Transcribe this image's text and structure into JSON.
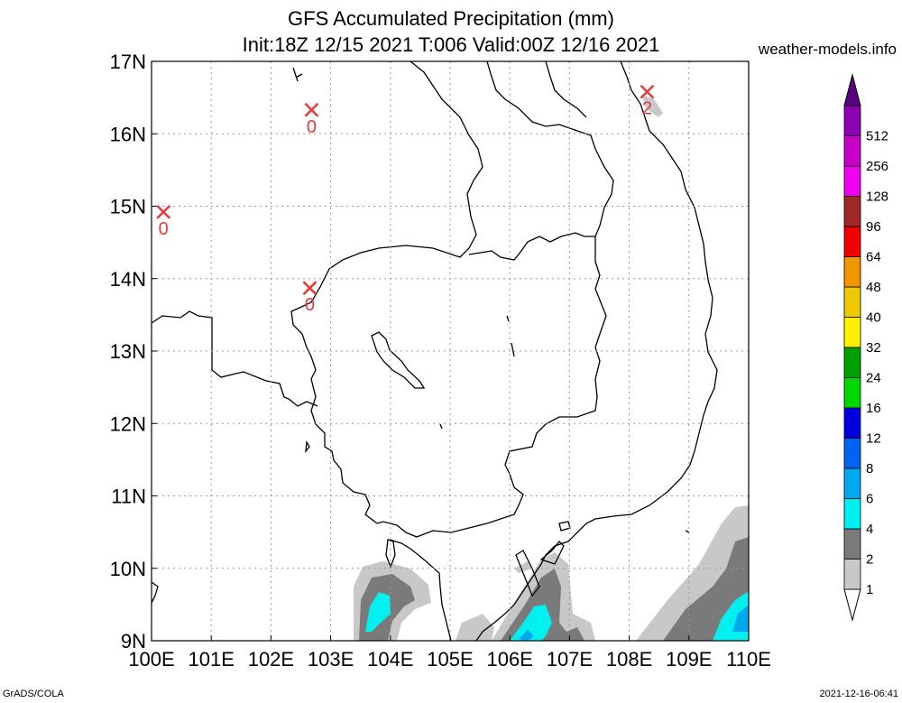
{
  "title": {
    "line1": "GFS Accumulated Precipitation (mm)",
    "line2": "Init:18Z 12/15 2021 T:006 Valid:00Z 12/16 2021"
  },
  "site": "weather-models.info",
  "footer": {
    "left": "GrADS/COLA",
    "right": "2021-12-16-06:41"
  },
  "map": {
    "lon_range": [
      100,
      110
    ],
    "lat_range": [
      9,
      17
    ],
    "grid": true,
    "lon_labels": [
      "100E",
      "101E",
      "102E",
      "103E",
      "104E",
      "105E",
      "106E",
      "107E",
      "108E",
      "109E",
      "110E"
    ],
    "lat_labels": [
      "9N",
      "10N",
      "11N",
      "12N",
      "13N",
      "14N",
      "15N",
      "16N",
      "17N"
    ]
  },
  "stations": [
    {
      "lon": 100.2,
      "lat": 14.92,
      "value": "0"
    },
    {
      "lon": 102.68,
      "lat": 16.33,
      "value": "0"
    },
    {
      "lon": 102.65,
      "lat": 13.87,
      "value": "0"
    },
    {
      "lon": 108.3,
      "lat": 16.58,
      "value": "2"
    }
  ],
  "colorbar": {
    "levels": [
      "1",
      "2",
      "4",
      "6",
      "8",
      "12",
      "16",
      "24",
      "32",
      "40",
      "48",
      "64",
      "96",
      "128",
      "256",
      "512"
    ],
    "colors": [
      "#c8c8c8",
      "#7a7a7a",
      "#00f0f0",
      "#00a8f0",
      "#0064f0",
      "#0000e0",
      "#00d800",
      "#00a000",
      "#fff000",
      "#f0c800",
      "#f09600",
      "#f00000",
      "#a02828",
      "#f000f0",
      "#c800c8",
      "#8c00b4",
      "#5a0082"
    ]
  }
}
